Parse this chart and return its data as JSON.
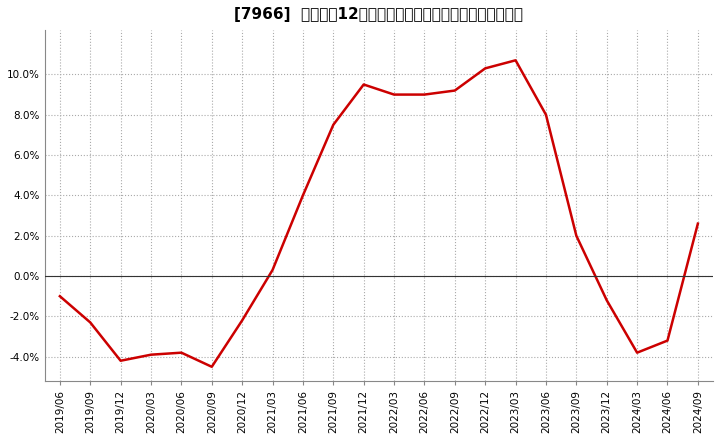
{
  "title": "[7966]  売上高の12か月移動合計の対前年同期増減率の推移",
  "line_color": "#cc0000",
  "bg_color": "#ffffff",
  "plot_bg_color": "#ffffff",
  "grid_color": "#aaaaaa",
  "x_labels": [
    "2019/06",
    "2019/09",
    "2019/12",
    "2020/03",
    "2020/06",
    "2020/09",
    "2020/12",
    "2021/03",
    "2021/06",
    "2021/09",
    "2021/12",
    "2022/03",
    "2022/06",
    "2022/09",
    "2022/12",
    "2023/03",
    "2023/06",
    "2023/09",
    "2023/12",
    "2024/03",
    "2024/06",
    "2024/09"
  ],
  "values": [
    -1.0,
    -2.3,
    -4.2,
    -3.9,
    -3.8,
    -4.5,
    -2.2,
    0.3,
    4.0,
    7.5,
    9.5,
    9.0,
    9.0,
    9.2,
    10.3,
    10.7,
    8.0,
    2.0,
    -1.2,
    -3.8,
    -3.2,
    2.6
  ],
  "ylim": [
    -5.2,
    12.2
  ],
  "yticks": [
    -4.0,
    -2.0,
    0.0,
    2.0,
    4.0,
    6.0,
    8.0,
    10.0
  ],
  "title_fontsize": 11,
  "tick_fontsize": 7.5,
  "line_width": 1.8
}
